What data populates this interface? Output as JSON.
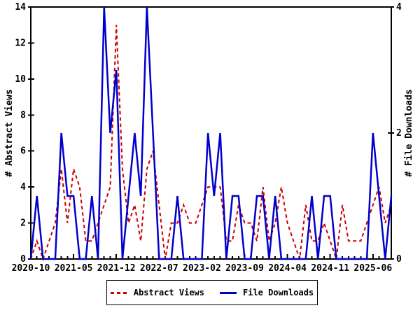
{
  "chart_data": {
    "type": "line",
    "title": "",
    "x": [
      "2020-10",
      "2020-11",
      "2020-12",
      "2021-01",
      "2021-02",
      "2021-03",
      "2021-04",
      "2021-05",
      "2021-06",
      "2021-07",
      "2021-08",
      "2021-09",
      "2021-10",
      "2021-11",
      "2021-12",
      "2022-01",
      "2022-02",
      "2022-03",
      "2022-04",
      "2022-05",
      "2022-06",
      "2022-07",
      "2022-08",
      "2022-09",
      "2022-10",
      "2022-11",
      "2022-12",
      "2023-01",
      "2023-02",
      "2023-03",
      "2023-04",
      "2023-05",
      "2023-06",
      "2023-07",
      "2023-08",
      "2023-09",
      "2023-10",
      "2023-11",
      "2023-12",
      "2024-01",
      "2024-02",
      "2024-03",
      "2024-04",
      "2024-05",
      "2024-06",
      "2024-07",
      "2024-08",
      "2024-09",
      "2024-10",
      "2024-11",
      "2024-12",
      "2025-01",
      "2025-02",
      "2025-03",
      "2025-04",
      "2025-05",
      "2025-06",
      "2025-07",
      "2025-08",
      "2025-09"
    ],
    "x_tick_labels": [
      "2020-10",
      "2021-05",
      "2021-12",
      "2022-07",
      "2023-02",
      "2023-09",
      "2024-04",
      "2024-11",
      "2025-06"
    ],
    "left_axis": {
      "label": "# Abstract Views",
      "min": 0,
      "max": 14,
      "ticks": [
        0,
        2,
        4,
        6,
        8,
        10,
        12,
        14
      ]
    },
    "right_axis": {
      "label": "# File Downloads",
      "min": 0,
      "max": 4,
      "ticks": [
        0,
        2,
        4
      ]
    },
    "series": [
      {
        "name": "Abstract Views",
        "axis": "left",
        "color": "#cc0000",
        "style": "dashed",
        "values": [
          0,
          1,
          0,
          1,
          2,
          5,
          2,
          5,
          4,
          1,
          1,
          2,
          3,
          4,
          13,
          5,
          2,
          3,
          1,
          5,
          6,
          3,
          0,
          2,
          2,
          3,
          2,
          2,
          3,
          4,
          4,
          4,
          1,
          1,
          3,
          2,
          2,
          1,
          4,
          1,
          2,
          4,
          2,
          1,
          0,
          3,
          1,
          1,
          2,
          1,
          0,
          3,
          1,
          1,
          1,
          2,
          3,
          4,
          2,
          3
        ]
      },
      {
        "name": "File Downloads",
        "axis": "right",
        "color": "#0000cc",
        "style": "solid",
        "values": [
          0,
          1,
          0,
          0,
          0,
          2,
          1,
          1,
          0,
          0,
          1,
          0,
          4,
          2,
          3,
          0,
          1,
          2,
          1,
          4,
          2,
          0,
          0,
          0,
          1,
          0,
          0,
          0,
          0,
          2,
          1,
          2,
          0,
          1,
          1,
          0,
          0,
          1,
          1,
          0,
          1,
          0,
          0,
          0,
          0,
          0,
          1,
          0,
          1,
          1,
          0,
          0,
          0,
          0,
          0,
          0,
          2,
          1,
          0,
          1
        ]
      }
    ],
    "legend": {
      "position": "bottom-center",
      "entries": [
        "Abstract Views",
        "File Downloads"
      ]
    },
    "grid": false,
    "axis_color": "#000000",
    "background": "#ffffff"
  }
}
